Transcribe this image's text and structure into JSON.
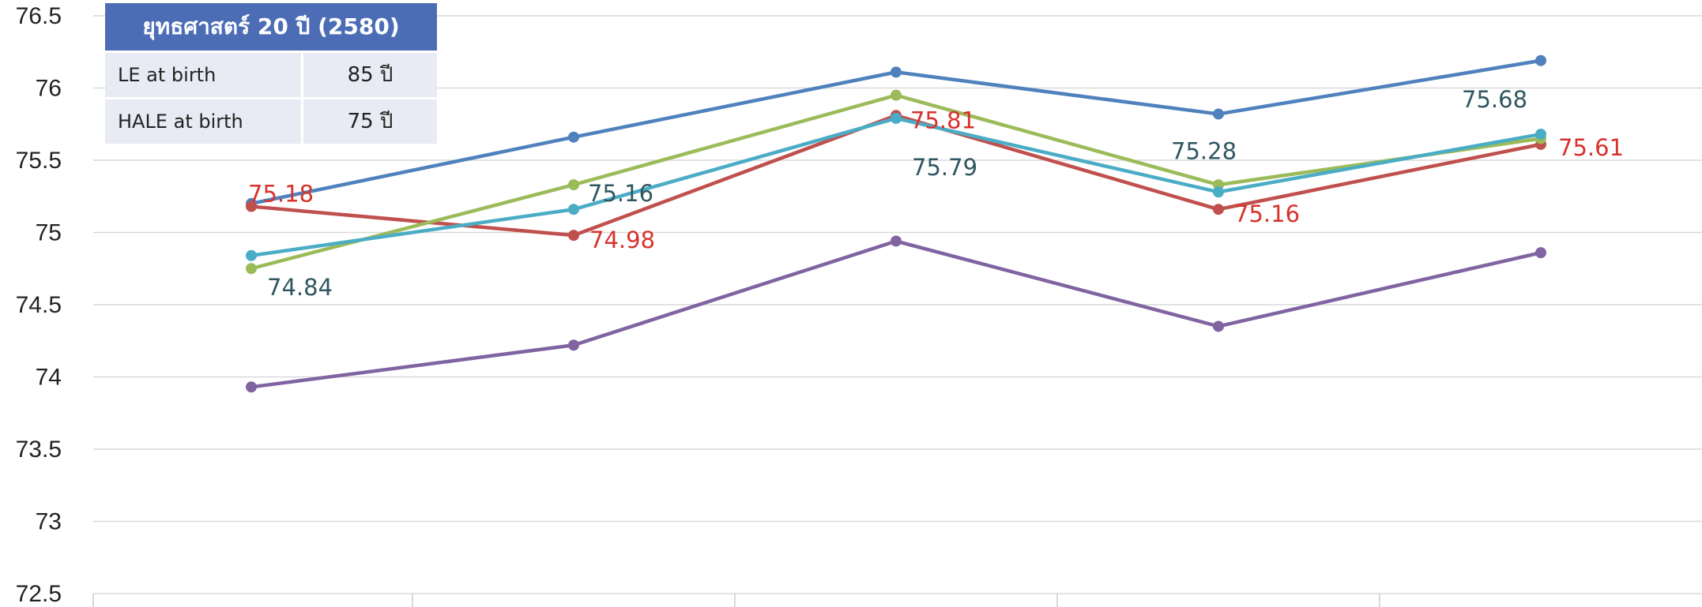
{
  "chart_data": {
    "type": "line",
    "x": [
      "",
      "",
      "",
      "",
      ""
    ],
    "ylim": [
      72.5,
      76.5
    ],
    "yticks": [
      "72.5",
      "73",
      "73.5",
      "74",
      "74.5",
      "75",
      "75.5",
      "76",
      "76.5"
    ],
    "grid": true,
    "series": [
      {
        "color": "#4f81bd",
        "values": [
          75.2,
          75.66,
          76.11,
          75.82,
          76.19
        ],
        "labels": []
      },
      {
        "color": "#c0504d",
        "values": [
          75.18,
          74.98,
          75.81,
          75.16,
          75.61
        ],
        "labels": [
          "75.18",
          "74.98",
          "75.81",
          "75.16",
          "75.61"
        ]
      },
      {
        "color": "#9bbb59",
        "values": [
          74.75,
          75.33,
          75.95,
          75.33,
          75.65
        ],
        "labels": []
      },
      {
        "color": "#4bacc6",
        "values": [
          74.84,
          75.16,
          75.79,
          75.28,
          75.68
        ],
        "labels": [
          "74.84",
          "75.16",
          "75.79",
          "75.28",
          "75.68"
        ]
      },
      {
        "color": "#8064a2",
        "values": [
          73.93,
          74.22,
          74.94,
          74.35,
          74.86
        ],
        "labels": []
      }
    ]
  },
  "target_box": {
    "title": "ยุทธศาสตร์ 20 ปี (2580)",
    "rows": [
      {
        "label": "LE at birth",
        "value": "85 ปี"
      },
      {
        "label": "HALE at birth",
        "value": "75 ปี"
      }
    ]
  }
}
